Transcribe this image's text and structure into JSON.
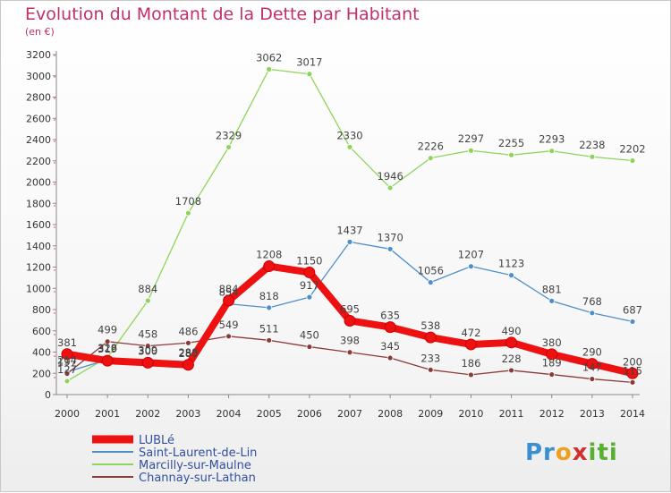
{
  "chart_data": {
    "type": "line",
    "title": "Evolution du Montant de la Dette par Habitant",
    "subtitle": "(en €)",
    "x": [
      2000,
      2001,
      2002,
      2003,
      2004,
      2005,
      2006,
      2007,
      2008,
      2009,
      2010,
      2011,
      2012,
      2013,
      2014
    ],
    "ylim": [
      0,
      3200
    ],
    "yticks": [
      0,
      200,
      400,
      600,
      800,
      1000,
      1200,
      1400,
      1600,
      1800,
      2000,
      2200,
      2400,
      2600,
      2800,
      3000,
      3200
    ],
    "grid": false,
    "legend_position": "bottom-left",
    "series": [
      {
        "name": "Marcilly-sur-Maulne",
        "color": "#8fd45a",
        "values": [
          127,
          352,
          884,
          1708,
          2329,
          3062,
          3017,
          2330,
          1946,
          2226,
          2297,
          2255,
          2293,
          2238,
          2202
        ],
        "labels": [
          "127",
          "",
          "884",
          "1708",
          "2329",
          "3062",
          "3017",
          "2330",
          "1946",
          "2226",
          "2297",
          "2255",
          "2293",
          "2238",
          "2202"
        ]
      },
      {
        "name": "Saint-Laurent-de-Lin",
        "color": "#4f8fc8",
        "values": [
          214,
          328,
          309,
          288,
          854,
          818,
          917,
          1437,
          1370,
          1056,
          1207,
          1123,
          881,
          768,
          687
        ],
        "labels": [
          "214",
          "328",
          "309",
          "288",
          "854",
          "818",
          "917",
          "1437",
          "1370",
          "1056",
          "1207",
          "1123",
          "881",
          "768",
          "687"
        ]
      },
      {
        "name": "Channay-sur-Lathan",
        "color": "#8b3a3a",
        "values": [
          197,
          499,
          458,
          486,
          549,
          511,
          450,
          398,
          345,
          233,
          186,
          228,
          189,
          147,
          115
        ],
        "labels": [
          "197",
          "499",
          "458",
          "486",
          "549",
          "511",
          "450",
          "398",
          "345",
          "233",
          "186",
          "228",
          "189",
          "147",
          "115"
        ]
      },
      {
        "name": "LUBLé",
        "color": "#ee1111",
        "values": [
          381,
          319,
          300,
          280,
          884,
          1208,
          1150,
          695,
          635,
          538,
          472,
          490,
          380,
          290,
          200
        ],
        "labels": [
          "381",
          "319",
          "300",
          "280",
          "884",
          "1208",
          "1150",
          "695",
          "635",
          "538",
          "472",
          "490",
          "380",
          "290",
          "200"
        ]
      }
    ]
  },
  "legend": [
    {
      "name": "LUBLé",
      "color": "#ee1111",
      "thick": true
    },
    {
      "name": "Saint-Laurent-de-Lin",
      "color": "#4f8fc8",
      "thick": false
    },
    {
      "name": "Marcilly-sur-Maulne",
      "color": "#8fd45a",
      "thick": false
    },
    {
      "name": "Channay-sur-Lathan",
      "color": "#8b3a3a",
      "thick": false
    }
  ],
  "logo": {
    "p": "Pr",
    "o": "o",
    "x": "x",
    "iti": "iti"
  },
  "colors": {
    "title": "#c0306a",
    "legend_text": "#3050a0",
    "axis": "#888888"
  }
}
